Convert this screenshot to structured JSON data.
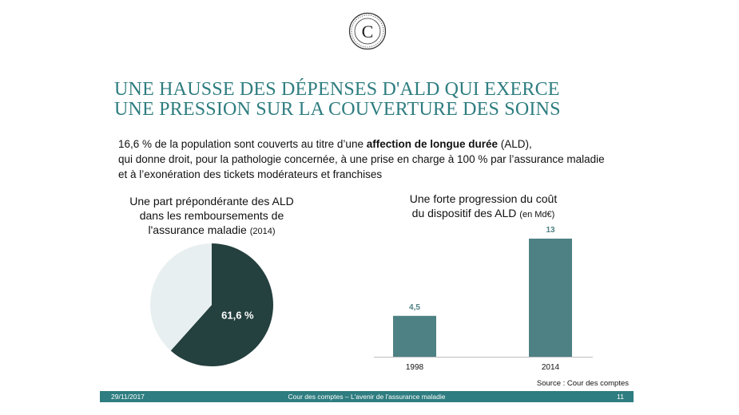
{
  "logo": {
    "glyph": "C"
  },
  "title": {
    "line1": "UNE HAUSSE DES DÉPENSES D'ALD QUI EXERCE",
    "line2": "UNE PRESSION SUR LA COUVERTURE DES SOINS"
  },
  "intro": {
    "line1_pre": "16,6 % de la population sont couverts au titre d’une ",
    "line1_bold": "affection de longue durée",
    "line1_post": " (ALD),",
    "line2": "qui donne droit, pour la pathologie concernée, à une prise en charge à 100 % par l’assurance maladie",
    "line3": "et à l’exonération des tickets modérateurs et franchises"
  },
  "pie_panel": {
    "title_line1": "Une part prépondérante des ALD",
    "title_line2": "dans les remboursements de",
    "title_line3": "l'assurance maladie",
    "title_small": "(2014)"
  },
  "bar_panel": {
    "title_line1": "Une forte progression du coût",
    "title_line2": "du dispositif des ALD",
    "title_small": "(en Md€)"
  },
  "colors": {
    "accent": "#2e7d80",
    "dark": "#24403f",
    "bar": "#4e8184",
    "light": "#e8eff1"
  },
  "chart_data": [
    {
      "type": "pie",
      "slices": [
        {
          "label": "61,6 %",
          "value": 61.6,
          "color": "#24403f"
        },
        {
          "label": "",
          "value": 38.4,
          "color": "#e8eff1"
        }
      ]
    },
    {
      "type": "bar",
      "categories": [
        "1998",
        "2014"
      ],
      "values": [
        4.5,
        13
      ],
      "labels": [
        "4,5",
        "13"
      ],
      "ylim": [
        0,
        13
      ]
    }
  ],
  "source": "Source : Cour des comptes",
  "footer": {
    "date": "29/11/2017",
    "center": "Cour des comptes – L'avenir de l'assurance maladie",
    "page": "11"
  }
}
